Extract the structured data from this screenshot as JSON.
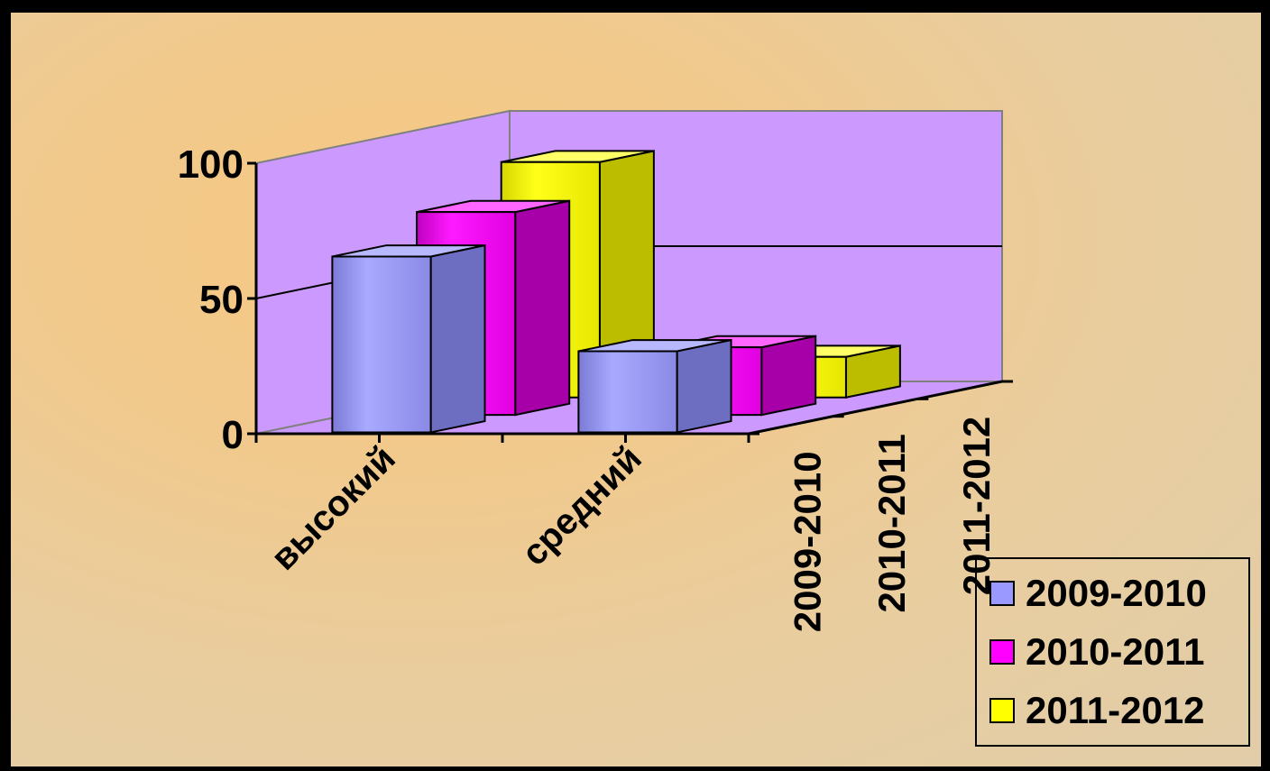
{
  "chart_data": {
    "type": "bar",
    "subtype": "3d-clustered-column",
    "categories": [
      "высокий",
      "средний"
    ],
    "depth_labels": [
      "2009-2010",
      "2010-2011",
      "2011-2012"
    ],
    "series": [
      {
        "name": "2009-2010",
        "values": [
          65,
          30
        ],
        "color": "#9999ff"
      },
      {
        "name": "2010-2011",
        "values": [
          75,
          25
        ],
        "color": "#ff00ff"
      },
      {
        "name": "2011-2012",
        "values": [
          87,
          15
        ],
        "color": "#ffff00"
      }
    ],
    "y_ticks": [
      "0",
      "50",
      "100"
    ],
    "ylim": [
      0,
      100
    ],
    "wall_color": "#cc99ff",
    "grid": true,
    "legend_position": "bottom-right"
  }
}
